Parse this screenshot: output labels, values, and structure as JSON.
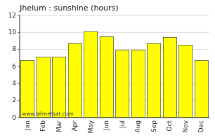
{
  "chart_data": {
    "type": "bar",
    "title": "Jhelum : sunshine (hours)",
    "categories": [
      "Jan",
      "Feb",
      "Mar",
      "Apr",
      "May",
      "Jun",
      "Jul",
      "Aug",
      "Sep",
      "Oct",
      "Nov",
      "Dec"
    ],
    "values": [
      6.7,
      7.1,
      7.1,
      8.7,
      10.1,
      9.5,
      7.9,
      7.9,
      8.7,
      9.4,
      8.5,
      6.7
    ],
    "color": "#ffff00",
    "ylim": [
      0,
      12
    ],
    "yticks": [
      0,
      2,
      4,
      6,
      8,
      10,
      12
    ],
    "grid": true,
    "annotations": [
      "www.allmetsat.com"
    ]
  }
}
